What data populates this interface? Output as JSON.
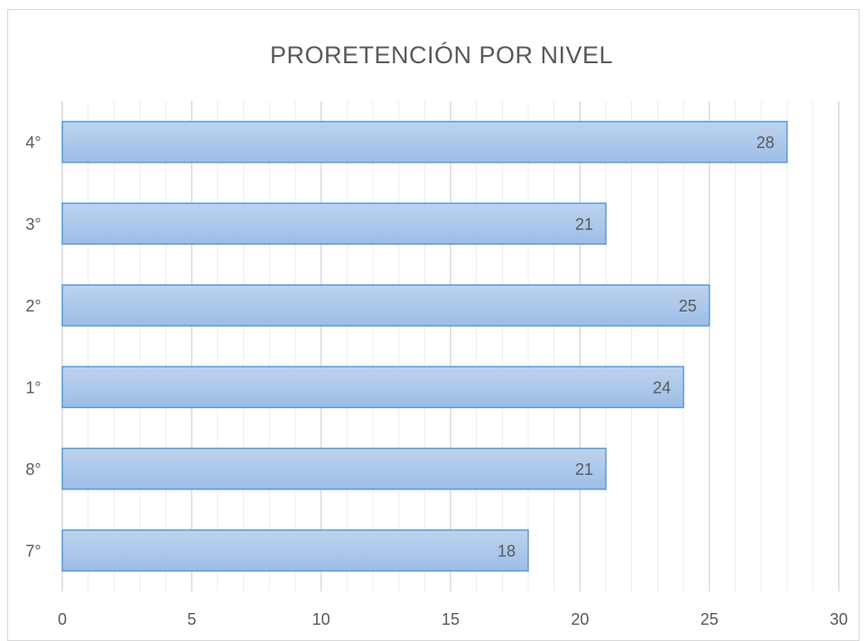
{
  "chart_data": {
    "type": "bar",
    "orientation": "horizontal",
    "title": "PRORETENCIÓN POR NIVEL",
    "xlabel": "",
    "ylabel": "",
    "categories": [
      "7°",
      "8°",
      "1°",
      "2°",
      "3°",
      "4°"
    ],
    "values": [
      18,
      21,
      24,
      25,
      21,
      28
    ],
    "xlim": [
      0,
      30
    ],
    "x_ticks": [
      0,
      5,
      10,
      15,
      20,
      25,
      30
    ],
    "grid": true,
    "minor_grid": true,
    "legend": "none",
    "data_labels": true,
    "colors": {
      "bar_fill_top": "#bdd3ee",
      "bar_fill_bottom": "#9dbde7",
      "bar_stroke": "#5b9bd5",
      "major_grid": "#d9d9d9",
      "minor_grid": "#ececec",
      "text": "#595959"
    }
  }
}
